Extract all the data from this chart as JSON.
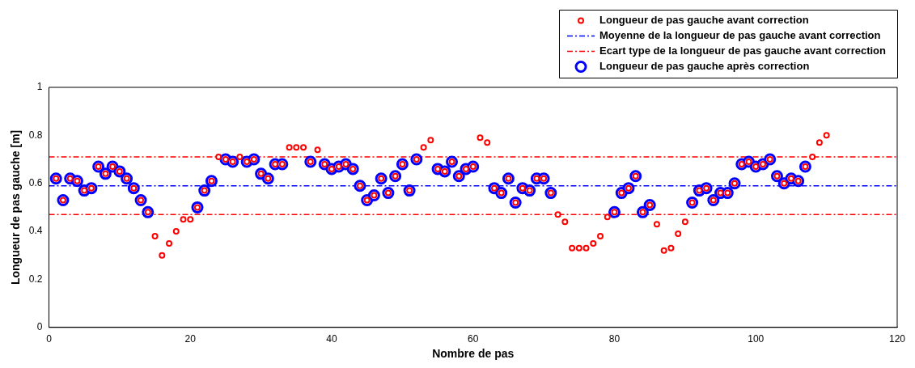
{
  "chart_data": {
    "type": "scatter",
    "xlabel": "Nombre de pas",
    "ylabel": "Longueur de pas gauche [m]",
    "x": [
      1,
      2,
      3,
      4,
      5,
      6,
      7,
      8,
      9,
      10,
      11,
      12,
      13,
      14,
      15,
      16,
      17,
      18,
      19,
      20,
      21,
      22,
      23,
      24,
      25,
      26,
      27,
      28,
      29,
      30,
      31,
      32,
      33,
      34,
      35,
      36,
      37,
      38,
      39,
      40,
      41,
      42,
      43,
      44,
      45,
      46,
      47,
      48,
      49,
      50,
      51,
      52,
      53,
      54,
      55,
      56,
      57,
      58,
      59,
      60,
      61,
      62,
      63,
      64,
      65,
      66,
      67,
      68,
      69,
      70,
      71,
      72,
      73,
      74,
      75,
      76,
      77,
      78,
      79,
      80,
      81,
      82,
      83,
      84,
      85,
      86,
      87,
      88,
      89,
      90,
      91,
      92,
      93,
      94,
      95,
      96,
      97,
      98,
      99,
      100,
      101,
      102,
      103,
      104,
      105,
      106,
      107,
      108,
      109,
      110
    ],
    "series": [
      {
        "name": "Longueur de pas gauche avant correction",
        "color": "#ff0000",
        "values": [
          0.62,
          0.53,
          0.62,
          0.61,
          0.57,
          0.58,
          0.67,
          0.64,
          0.67,
          0.65,
          0.62,
          0.58,
          0.53,
          0.48,
          0.38,
          0.3,
          0.35,
          0.4,
          0.45,
          0.45,
          0.5,
          0.57,
          0.61,
          0.71,
          0.7,
          0.69,
          0.71,
          0.69,
          0.7,
          0.64,
          0.62,
          0.68,
          0.68,
          0.75,
          0.75,
          0.75,
          0.69,
          0.74,
          0.68,
          0.66,
          0.67,
          0.68,
          0.66,
          0.59,
          0.53,
          0.55,
          0.62,
          0.56,
          0.63,
          0.68,
          0.57,
          0.7,
          0.75,
          0.78,
          0.66,
          0.65,
          0.69,
          0.63,
          0.66,
          0.67,
          0.79,
          0.77,
          0.58,
          0.56,
          0.62,
          0.52,
          0.58,
          0.57,
          0.62,
          0.62,
          0.56,
          0.47,
          0.44,
          0.33,
          0.33,
          0.33,
          0.35,
          0.38,
          0.46,
          0.48,
          0.56,
          0.58,
          0.63,
          0.48,
          0.51,
          0.43,
          0.32,
          0.33,
          0.39,
          0.44,
          0.52,
          0.57,
          0.58,
          0.53,
          0.56,
          0.56,
          0.6,
          0.68,
          0.69,
          0.67,
          0.68,
          0.7,
          0.63,
          0.6,
          0.62,
          0.61,
          0.67,
          0.71,
          0.77,
          0.8
        ]
      },
      {
        "name": "Longueur de pas gauche après correction",
        "color": "#0000ff",
        "values": [
          0.62,
          0.53,
          0.62,
          0.61,
          0.57,
          0.58,
          0.67,
          0.64,
          0.67,
          0.65,
          0.62,
          0.58,
          0.53,
          0.48,
          null,
          null,
          null,
          null,
          null,
          null,
          0.5,
          0.57,
          0.61,
          null,
          0.7,
          0.69,
          null,
          0.69,
          0.7,
          0.64,
          0.62,
          0.68,
          0.68,
          null,
          null,
          null,
          0.69,
          null,
          0.68,
          0.66,
          0.67,
          0.68,
          0.66,
          0.59,
          0.53,
          0.55,
          0.62,
          0.56,
          0.63,
          0.68,
          0.57,
          0.7,
          null,
          null,
          0.66,
          0.65,
          0.69,
          0.63,
          0.66,
          0.67,
          null,
          null,
          0.58,
          0.56,
          0.62,
          0.52,
          0.58,
          0.57,
          0.62,
          0.62,
          0.56,
          null,
          null,
          null,
          null,
          null,
          null,
          null,
          null,
          0.48,
          0.56,
          0.58,
          0.63,
          0.48,
          0.51,
          null,
          null,
          null,
          null,
          null,
          0.52,
          0.57,
          0.58,
          0.53,
          0.56,
          0.56,
          0.6,
          0.68,
          0.69,
          0.67,
          0.68,
          0.7,
          0.63,
          0.6,
          0.62,
          0.61,
          0.67,
          null,
          null,
          null
        ]
      }
    ],
    "ref_lines": [
      {
        "axis": "y",
        "value": 0.59,
        "label": "Moyenne de la longueur de pas gauche avant correction",
        "color": "#0000ff",
        "line_style": "dashed"
      },
      {
        "axis": "y",
        "value": 0.71,
        "label": "Ecart type de la longueur de pas gauche avant correction",
        "color": "#ff0000",
        "line_style": "dashed"
      },
      {
        "axis": "y",
        "value": 0.47,
        "label": null,
        "color": "#ff0000",
        "line_style": "dashed"
      }
    ],
    "xlim": [
      0,
      120
    ],
    "xticks": [
      0,
      20,
      40,
      60,
      80,
      100,
      120
    ],
    "ylim": [
      0,
      1
    ],
    "yticks": [
      0,
      0.2,
      0.4,
      0.6,
      0.8,
      1
    ],
    "grid": false,
    "legend": "top right",
    "marker": "circle"
  }
}
